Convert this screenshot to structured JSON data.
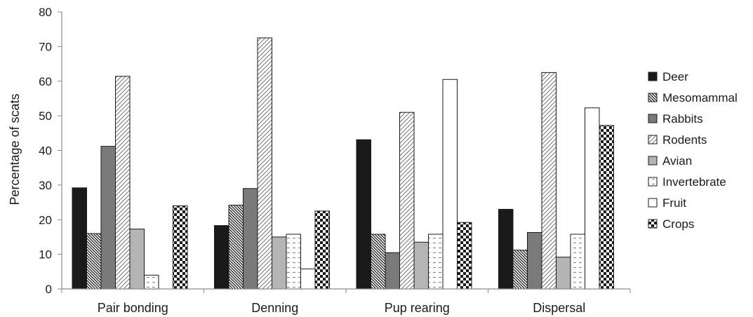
{
  "colors": {
    "deer": "#1a1a1a",
    "rabbits": "#7a7a7a",
    "avian": "#b4b4b4",
    "fruit": "#ffffff",
    "stroke": "#1a1a1a",
    "axis": "#8a8a8a"
  },
  "chart_data": {
    "type": "bar",
    "title": "",
    "xlabel": "",
    "ylabel": "Percentage of scats",
    "ylim": [
      0,
      80
    ],
    "yticks": [
      0,
      10,
      20,
      30,
      40,
      50,
      60,
      70,
      80
    ],
    "grid": false,
    "legend_position": "right",
    "categories": [
      "Pair bonding",
      "Denning",
      "Pup rearing",
      "Dispersal"
    ],
    "series": [
      {
        "name": "Deer",
        "pattern": "solid-black",
        "values": [
          29.2,
          18.3,
          43.1,
          23.0
        ]
      },
      {
        "name": "Mesomammal",
        "pattern": "dense-diagonal-hatch",
        "values": [
          16.0,
          24.2,
          15.8,
          11.2
        ]
      },
      {
        "name": "Rabbits",
        "pattern": "solid-dark-gray",
        "values": [
          41.2,
          29.0,
          10.5,
          16.3
        ]
      },
      {
        "name": "Rodents",
        "pattern": "light-diagonal-hatch",
        "values": [
          61.4,
          72.5,
          51.0,
          62.5
        ]
      },
      {
        "name": "Avian",
        "pattern": "solid-light-gray",
        "values": [
          17.3,
          15.0,
          13.5,
          9.2
        ]
      },
      {
        "name": "Invertebrate",
        "pattern": "horizontal-dashes",
        "values": [
          4.0,
          15.8,
          15.8,
          15.8
        ]
      },
      {
        "name": "Fruit",
        "pattern": "solid-white",
        "values": [
          0,
          5.8,
          60.5,
          52.3
        ]
      },
      {
        "name": "Crops",
        "pattern": "checkerboard",
        "values": [
          24.0,
          22.5,
          19.2,
          47.2
        ]
      }
    ]
  }
}
